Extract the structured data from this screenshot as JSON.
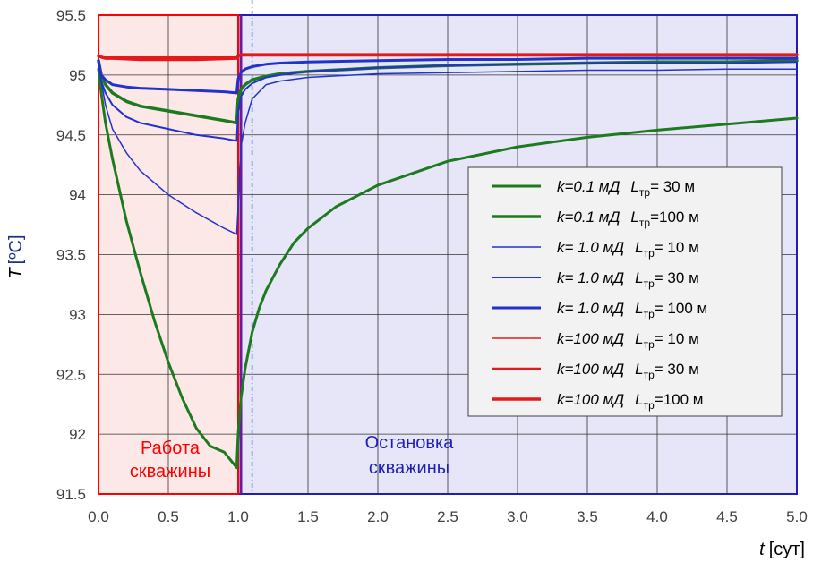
{
  "chart_data": {
    "type": "line",
    "xlabel": {
      "var": "t",
      "unit": "[сут]"
    },
    "ylabel": {
      "var": "T",
      "unit": "[ºC]"
    },
    "xlim": [
      0,
      5
    ],
    "ylim": [
      91.5,
      95.5
    ],
    "x_ticks": [
      "0.0",
      "0.5",
      "1.0",
      "1.5",
      "2.0",
      "2.5",
      "3.0",
      "3.5",
      "4.0",
      "4.5",
      "5.0"
    ],
    "y_ticks": [
      "91.5",
      "92",
      "92.5",
      "93",
      "93.5",
      "94",
      "94.5",
      "95",
      "95.5"
    ],
    "grid": true,
    "legend_placement": "right-middle",
    "regions": [
      {
        "label_line1": "Работа",
        "label_line2": "скважины",
        "x_from": 0,
        "x_to": 1,
        "color": "#ff0000",
        "fill": "#fde8e8"
      },
      {
        "label_line1": "Остановка",
        "label_line2": "скважины",
        "x_from": 1,
        "x_to": 5,
        "color": "#1f1fb8",
        "fill": "#e6e6f8"
      }
    ],
    "marker_line_x": 1.1,
    "series": [
      {
        "name_k": "k=0.1 мД",
        "name_L": "= 30 м",
        "color": "#1e7a1e",
        "width": 3,
        "x": [
          0,
          0.02,
          0.05,
          0.1,
          0.2,
          0.3,
          0.4,
          0.5,
          0.6,
          0.7,
          0.8,
          0.9,
          0.99,
          1.0,
          1.02,
          1.05,
          1.1,
          1.15,
          1.2,
          1.3,
          1.4,
          1.5,
          1.7,
          2.0,
          2.5,
          3.0,
          3.5,
          4.0,
          4.5,
          5.0
        ],
        "y": [
          95.05,
          94.85,
          94.6,
          94.3,
          93.78,
          93.35,
          92.95,
          92.6,
          92.3,
          92.05,
          91.9,
          91.85,
          91.72,
          92.0,
          92.3,
          92.55,
          92.85,
          93.05,
          93.2,
          93.42,
          93.6,
          93.72,
          93.9,
          94.08,
          94.28,
          94.4,
          94.48,
          94.54,
          94.59,
          94.64
        ]
      },
      {
        "name_k": "k=0.1 мД",
        "name_L": "=100 м",
        "color": "#1e7a1e",
        "width": 3.5,
        "x": [
          0,
          0.02,
          0.05,
          0.1,
          0.2,
          0.3,
          0.5,
          0.7,
          0.9,
          0.99,
          1.0,
          1.02,
          1.05,
          1.1,
          1.2,
          1.3,
          1.5,
          2.0,
          2.5,
          3.0,
          3.5,
          4.0,
          4.5,
          5.0
        ],
        "y": [
          95.12,
          95.0,
          94.92,
          94.85,
          94.78,
          94.74,
          94.7,
          94.66,
          94.62,
          94.6,
          94.8,
          94.88,
          94.92,
          94.96,
          94.99,
          95.01,
          95.03,
          95.06,
          95.08,
          95.09,
          95.1,
          95.11,
          95.11,
          95.12
        ]
      },
      {
        "name_k": "k= 1.0 мД",
        "name_L": "= 10 м",
        "color": "#2233cc",
        "width": 1.5,
        "x": [
          0,
          0.02,
          0.05,
          0.1,
          0.2,
          0.3,
          0.5,
          0.7,
          0.9,
          0.99,
          1.0,
          1.01,
          1.02,
          1.05,
          1.1,
          1.2,
          1.3,
          1.5,
          2.0,
          2.5,
          3.0,
          3.5,
          4.0,
          4.5,
          5.0
        ],
        "y": [
          95.1,
          94.95,
          94.75,
          94.55,
          94.35,
          94.2,
          94.0,
          93.85,
          93.72,
          93.67,
          93.9,
          94.2,
          94.4,
          94.6,
          94.8,
          94.92,
          94.95,
          94.98,
          95.01,
          95.02,
          95.03,
          95.04,
          95.04,
          95.05,
          95.05
        ]
      },
      {
        "name_k": "k= 1.0 мД",
        "name_L": "=  30 м",
        "color": "#2233cc",
        "width": 2,
        "x": [
          0,
          0.02,
          0.05,
          0.1,
          0.2,
          0.3,
          0.5,
          0.7,
          0.9,
          0.99,
          1.0,
          1.02,
          1.05,
          1.1,
          1.2,
          1.3,
          1.5,
          2.0,
          2.5,
          3.0,
          3.5,
          4.0,
          4.5,
          5.0
        ],
        "y": [
          95.12,
          94.95,
          94.85,
          94.75,
          94.65,
          94.6,
          94.55,
          94.5,
          94.47,
          94.45,
          94.7,
          94.82,
          94.88,
          94.93,
          94.98,
          95.0,
          95.03,
          95.06,
          95.08,
          95.09,
          95.1,
          95.1,
          95.1,
          95.11
        ]
      },
      {
        "name_k": "k= 1.0 мД",
        "name_L": "= 100 м",
        "color": "#2233cc",
        "width": 3,
        "x": [
          0,
          0.02,
          0.05,
          0.1,
          0.2,
          0.3,
          0.5,
          0.7,
          0.9,
          0.99,
          1.0,
          1.02,
          1.05,
          1.1,
          1.2,
          1.3,
          1.5,
          2.0,
          2.5,
          3.0,
          3.5,
          4.0,
          4.5,
          5.0
        ],
        "y": [
          95.12,
          95.0,
          94.96,
          94.92,
          94.9,
          94.89,
          94.88,
          94.87,
          94.86,
          94.85,
          94.97,
          95.02,
          95.05,
          95.07,
          95.09,
          95.1,
          95.11,
          95.12,
          95.13,
          95.13,
          95.14,
          95.14,
          95.14,
          95.14
        ]
      },
      {
        "name_k": "k=100 мД",
        "name_L": "=  10 м",
        "color": "#e41a1a",
        "width": 1.5,
        "x": [
          0,
          0.02,
          0.05,
          0.1,
          0.5,
          0.99,
          1.0,
          1.02,
          1.1,
          1.5,
          2.0,
          3.0,
          4.0,
          5.0
        ],
        "y": [
          95.16,
          95.15,
          95.15,
          95.15,
          95.15,
          95.15,
          95.16,
          95.16,
          95.16,
          95.16,
          95.16,
          95.16,
          95.16,
          95.16
        ]
      },
      {
        "name_k": "k=100 мД",
        "name_L": "=  30 м",
        "color": "#e41a1a",
        "width": 2.5,
        "x": [
          0,
          0.02,
          0.05,
          0.1,
          0.5,
          0.99,
          1.0,
          1.02,
          1.1,
          1.5,
          2.0,
          3.0,
          4.0,
          5.0
        ],
        "y": [
          95.16,
          95.15,
          95.14,
          95.14,
          95.14,
          95.14,
          95.16,
          95.17,
          95.17,
          95.17,
          95.17,
          95.17,
          95.17,
          95.17
        ]
      },
      {
        "name_k": "k=100 мД",
        "name_L": "=100 м",
        "color": "#e41a1a",
        "width": 3.5,
        "x": [
          0,
          0.02,
          0.05,
          0.1,
          0.3,
          0.5,
          0.7,
          0.99,
          1.0,
          1.02,
          1.1,
          1.5,
          2.0,
          3.0,
          4.0,
          5.0
        ],
        "y": [
          95.16,
          95.15,
          95.14,
          95.14,
          95.13,
          95.13,
          95.13,
          95.14,
          95.16,
          95.17,
          95.17,
          95.17,
          95.17,
          95.17,
          95.17,
          95.17
        ]
      }
    ]
  }
}
